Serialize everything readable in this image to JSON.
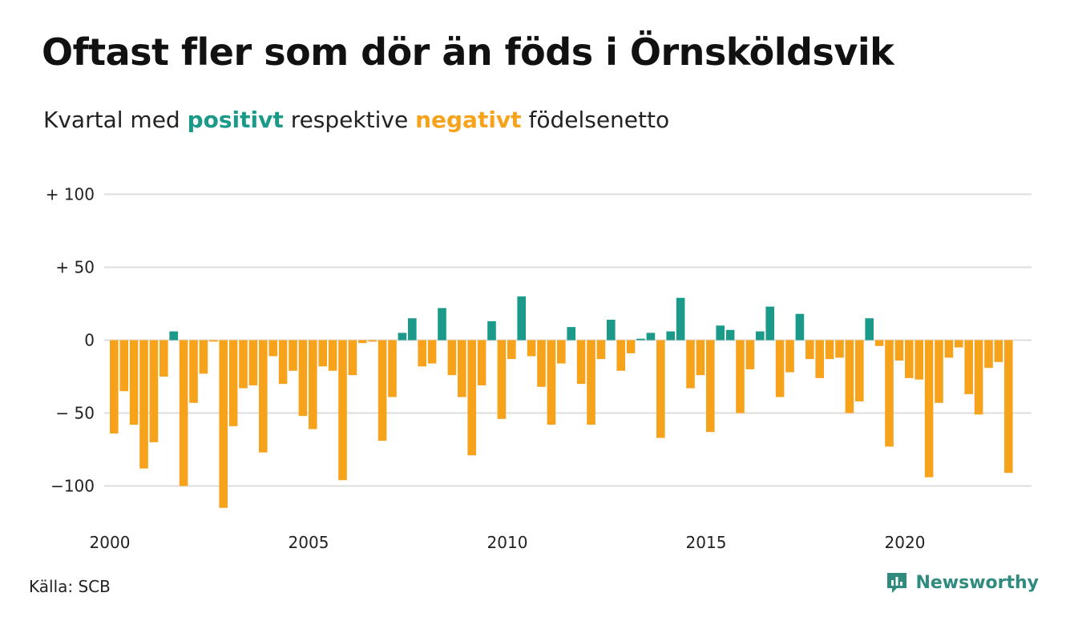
{
  "title": "Oftast fler som dör än föds i Örnsköldsvik",
  "subtitle": {
    "prefix": "Kvartal med",
    "positive_word": "positivt",
    "middle": "respektive",
    "negative_word": "negativt",
    "suffix": "födelsenetto"
  },
  "source": "Källa: SCB",
  "brand": "Newsworthy",
  "colors": {
    "positive": "#1b9a8a",
    "negative": "#f7a21b",
    "brand": "#2e8b7e",
    "grid": "#dddddd"
  },
  "chart_data": {
    "type": "bar",
    "x_start": {
      "year": 2000,
      "quarter": 1
    },
    "x_tick_labels": [
      "2000",
      "2005",
      "2010",
      "2015",
      "2020"
    ],
    "y_tick_labels": [
      {
        "value": 100,
        "label": "+ 100"
      },
      {
        "value": 50,
        "label": "+  50"
      },
      {
        "value": 0,
        "label": "0"
      },
      {
        "value": -50,
        "label": "− 50"
      },
      {
        "value": -100,
        "label": "−100"
      }
    ],
    "ylim": [
      -115,
      100
    ],
    "grid": true,
    "values": [
      -64,
      -35,
      -58,
      -88,
      -70,
      -25,
      6,
      -100,
      -43,
      -23,
      -1,
      -115,
      -59,
      -33,
      -31,
      -77,
      -11,
      -30,
      -21,
      -52,
      -61,
      -18,
      -21,
      -96,
      -24,
      -2,
      -1,
      -69,
      -39,
      5,
      15,
      -18,
      -16,
      22,
      -24,
      -39,
      -79,
      -31,
      13,
      -54,
      -13,
      30,
      -11,
      -32,
      -58,
      -16,
      9,
      -30,
      -58,
      -13,
      14,
      -21,
      -9,
      1,
      5,
      -67,
      6,
      29,
      -33,
      -24,
      -63,
      10,
      7,
      -50,
      -20,
      6,
      23,
      -39,
      -22,
      18,
      -13,
      -26,
      -13,
      -12,
      -50,
      -42,
      15,
      -4,
      -73,
      -14,
      -26,
      -27,
      -94,
      -43,
      -12,
      -5,
      -37,
      -51,
      -19,
      -15,
      -91
    ]
  }
}
